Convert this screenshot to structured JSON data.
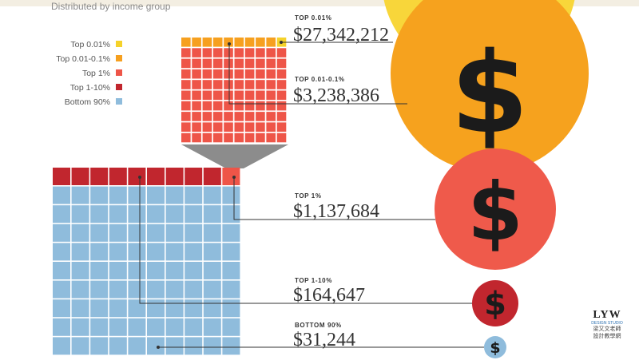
{
  "subtitle": "Distributed by income group",
  "legend": [
    {
      "label": "Top 0.01%",
      "color": "#f5d22a"
    },
    {
      "label": "Top 0.01-0.1%",
      "color": "#f6a01f"
    },
    {
      "label": "Top 1%",
      "color": "#ee5548"
    },
    {
      "label": "Top 1-10%",
      "color": "#c1262e"
    },
    {
      "label": "Bottom 90%",
      "color": "#8fbcdc"
    }
  ],
  "groups": [
    {
      "heading": "TOP 0.01%",
      "amount": "$27,342,212"
    },
    {
      "heading": "TOP 0.01-0.1%",
      "amount": "$3,238,386"
    },
    {
      "heading": "TOP 1%",
      "amount": "$1,137,684"
    },
    {
      "heading": "TOP 1-10%",
      "amount": "$164,647"
    },
    {
      "heading": "BOTTOM 90%",
      "amount": "$31,244"
    }
  ],
  "dollar_symbol": "$",
  "watermark": {
    "brand": "LYW",
    "studio": "DESIGN STUDIO",
    "line1": "梁又文老師",
    "line2": "設計教學網"
  }
}
